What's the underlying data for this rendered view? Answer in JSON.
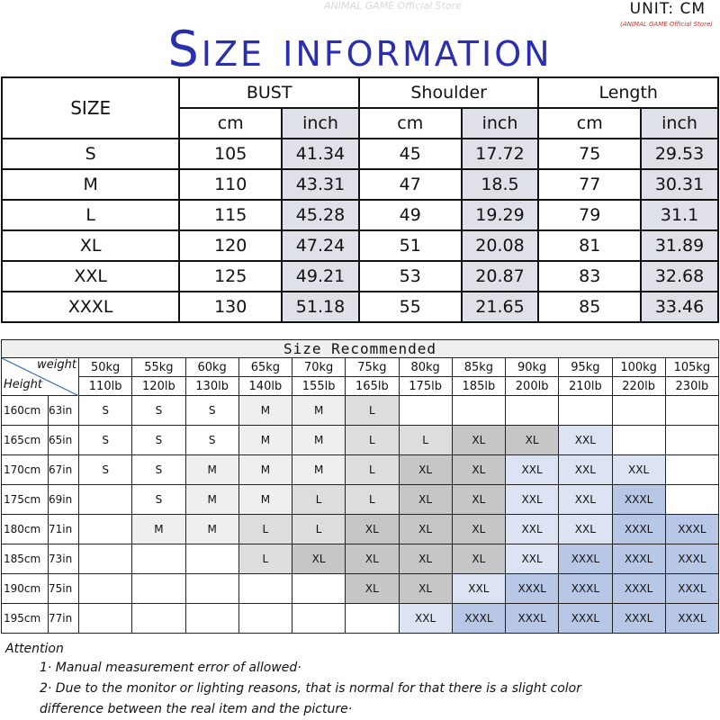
{
  "header": {
    "title": "Size information",
    "unit": "UNIT: CM",
    "store": "(ANIMAL GAME Official Store)",
    "watermark": "ANIMAL GAME Official Store"
  },
  "measurements": {
    "size_label": "SIZE",
    "groups": [
      "BUST",
      "Shoulder",
      "Length"
    ],
    "sub": [
      "cm",
      "inch"
    ],
    "rows": [
      [
        "S",
        "105",
        "41.34",
        "45",
        "17.72",
        "75",
        "29.53"
      ],
      [
        "M",
        "110",
        "43.31",
        "47",
        "18.5",
        "77",
        "30.31"
      ],
      [
        "L",
        "115",
        "45.28",
        "49",
        "19.29",
        "79",
        "31.1"
      ],
      [
        "XL",
        "120",
        "47.24",
        "51",
        "20.08",
        "81",
        "31.89"
      ],
      [
        "XXL",
        "125",
        "49.21",
        "53",
        "20.87",
        "83",
        "32.68"
      ],
      [
        "XXXL",
        "130",
        "51.18",
        "55",
        "21.65",
        "85",
        "33.46"
      ]
    ],
    "inch_bg": "#dfe1e8"
  },
  "recommended": {
    "title": "Size Recommended",
    "weight_label": "weight",
    "height_label": "Height",
    "kg": [
      "50kg",
      "55kg",
      "60kg",
      "65kg",
      "70kg",
      "75kg",
      "80kg",
      "85kg",
      "90kg",
      "95kg",
      "100kg",
      "105kg"
    ],
    "lb": [
      "110lb",
      "120lb",
      "130lb",
      "140lb",
      "155lb",
      "165lb",
      "175lb",
      "185lb",
      "200lb",
      "210lb",
      "220lb",
      "230lb"
    ],
    "rows": [
      {
        "cm": "160cm",
        "in": "63in",
        "sizes": [
          "S",
          "S",
          "S",
          "M",
          "M",
          "L",
          "",
          "",
          "",
          "",
          "",
          ""
        ]
      },
      {
        "cm": "165cm",
        "in": "65in",
        "sizes": [
          "S",
          "S",
          "S",
          "M",
          "M",
          "L",
          "L",
          "XL",
          "XL",
          "XXL",
          "",
          ""
        ]
      },
      {
        "cm": "170cm",
        "in": "67in",
        "sizes": [
          "S",
          "S",
          "M",
          "M",
          "M",
          "L",
          "XL",
          "XL",
          "XXL",
          "XXL",
          "XXL",
          ""
        ]
      },
      {
        "cm": "175cm",
        "in": "69in",
        "sizes": [
          "",
          "S",
          "M",
          "M",
          "L",
          "L",
          "XL",
          "XL",
          "XXL",
          "XXL",
          "XXXL",
          ""
        ]
      },
      {
        "cm": "180cm",
        "in": "71in",
        "sizes": [
          "",
          "M",
          "M",
          "L",
          "L",
          "XL",
          "XL",
          "XL",
          "XXL",
          "XXL",
          "XXXL",
          "XXXL"
        ]
      },
      {
        "cm": "185cm",
        "in": "73in",
        "sizes": [
          "",
          "",
          "",
          "L",
          "XL",
          "XL",
          "XL",
          "XL",
          "XXL",
          "XXXL",
          "XXXL",
          "XXXL"
        ]
      },
      {
        "cm": "190cm",
        "in": "75in",
        "sizes": [
          "",
          "",
          "",
          "",
          "",
          "XL",
          "XL",
          "XXL",
          "XXXL",
          "XXXL",
          "XXXL",
          "XXXL"
        ]
      },
      {
        "cm": "195cm",
        "in": "77in",
        "sizes": [
          "",
          "",
          "",
          "",
          "",
          "",
          "XXL",
          "XXXL",
          "XXXL",
          "XXXL",
          "XXXL",
          "XXXL"
        ]
      }
    ],
    "colors": {
      "S": "#ffffff",
      "M": "#efefef",
      "L": "#dddddd",
      "XL": "#c6c6c6",
      "XXL": "#dce4f4",
      "XXXL": "#b9c7e7"
    }
  },
  "attention": {
    "label": "Attention",
    "notes": [
      "1· Manual measurement error of allowed·",
      "2·  Due to the monitor or lighting reasons, that is normal for that there is a slight color",
      "difference between the real item and the picture·"
    ]
  }
}
